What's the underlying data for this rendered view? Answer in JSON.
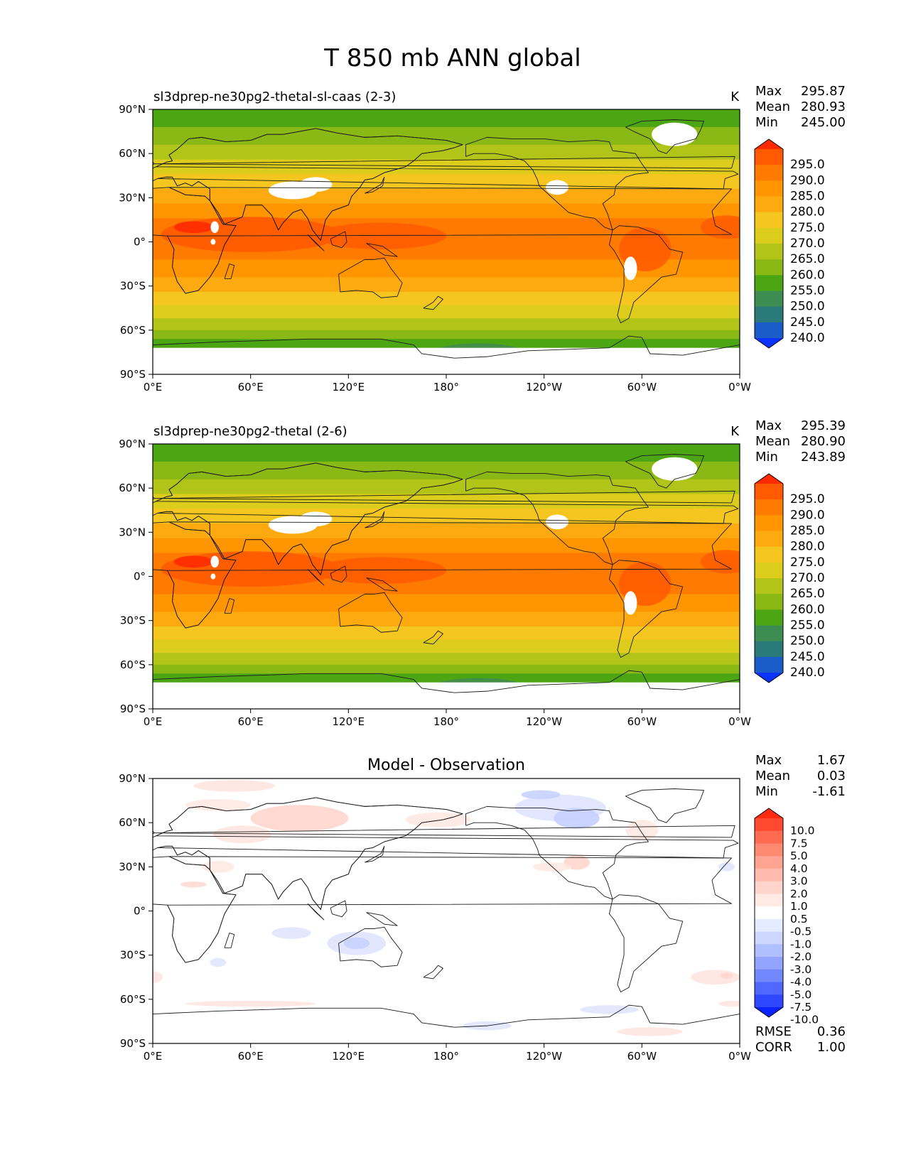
{
  "figure": {
    "title": "T 850 mb ANN global"
  },
  "chart_data": [
    {
      "type": "heatmap",
      "title": "sl3dprep-ne30pg2-thetal-sl-caas (2-3)",
      "units": "K",
      "stats": [
        {
          "label": "Max",
          "value": "295.87"
        },
        {
          "label": "Mean",
          "value": "280.93"
        },
        {
          "label": "Min",
          "value": "245.00"
        }
      ],
      "x_ticks": [
        "0°E",
        "60°E",
        "120°E",
        "180°",
        "120°W",
        "60°W",
        "0°W"
      ],
      "y_ticks": [
        "90°N",
        "60°N",
        "30°N",
        "0°",
        "30°S",
        "60°S",
        "90°S"
      ],
      "colorbar": {
        "labels": [
          "295.0",
          "290.0",
          "285.0",
          "280.0",
          "275.0",
          "270.0",
          "265.0",
          "260.0",
          "255.0",
          "250.0",
          "245.0",
          "240.0"
        ],
        "colors": [
          "#ff2a00",
          "#ff5a00",
          "#ff7a00",
          "#ff9500",
          "#fdaa10",
          "#f5c520",
          "#dccc1c",
          "#b2c418",
          "#8ab814",
          "#4ca614",
          "#3d8c52",
          "#2a7a7a",
          "#1a5cc8",
          "#0a33ff"
        ]
      }
    },
    {
      "type": "heatmap",
      "title": "sl3dprep-ne30pg2-thetal (2-6)",
      "units": "K",
      "stats": [
        {
          "label": "Max",
          "value": "295.39"
        },
        {
          "label": "Mean",
          "value": "280.90"
        },
        {
          "label": "Min",
          "value": "243.89"
        }
      ],
      "x_ticks": [
        "0°E",
        "60°E",
        "120°E",
        "180°",
        "120°W",
        "60°W",
        "0°W"
      ],
      "y_ticks": [
        "90°N",
        "60°N",
        "30°N",
        "0°",
        "30°S",
        "60°S",
        "90°S"
      ],
      "colorbar": {
        "labels": [
          "295.0",
          "290.0",
          "285.0",
          "280.0",
          "275.0",
          "270.0",
          "265.0",
          "260.0",
          "255.0",
          "250.0",
          "245.0",
          "240.0"
        ],
        "colors": [
          "#ff2a00",
          "#ff5a00",
          "#ff7a00",
          "#ff9500",
          "#fdaa10",
          "#f5c520",
          "#dccc1c",
          "#b2c418",
          "#8ab814",
          "#4ca614",
          "#3d8c52",
          "#2a7a7a",
          "#1a5cc8",
          "#0a33ff"
        ]
      }
    },
    {
      "type": "heatmap",
      "title": "Model - Observation",
      "units": "",
      "stats": [
        {
          "label": "Max",
          "value": "1.67"
        },
        {
          "label": "Mean",
          "value": "0.03"
        },
        {
          "label": "Min",
          "value": "-1.61"
        }
      ],
      "bottom_stats": [
        {
          "label": "RMSE",
          "value": "0.36"
        },
        {
          "label": "CORR",
          "value": "1.00"
        }
      ],
      "x_ticks": [
        "0°E",
        "60°E",
        "120°E",
        "180°",
        "120°W",
        "60°W",
        "0°W"
      ],
      "y_ticks": [
        "90°N",
        "60°N",
        "30°N",
        "0°",
        "30°S",
        "60°S",
        "90°S"
      ],
      "colorbar": {
        "labels": [
          "10.0",
          "7.5",
          "5.0",
          "4.0",
          "3.0",
          "2.0",
          "1.0",
          "0.5",
          "-0.5",
          "-1.0",
          "-2.0",
          "-3.0",
          "-4.0",
          "-5.0",
          "-7.5",
          "-10.0"
        ],
        "colors": [
          "#ff2a10",
          "#ff4a30",
          "#ff6a50",
          "#ff8a72",
          "#ffa492",
          "#ffbcae",
          "#ffd4ca",
          "#ffeae4",
          "#ffffff",
          "#e6ecff",
          "#ccd6ff",
          "#b0bfff",
          "#92a4ff",
          "#7288ff",
          "#5068ff",
          "#2f48ff",
          "#0a22ff"
        ]
      }
    }
  ]
}
